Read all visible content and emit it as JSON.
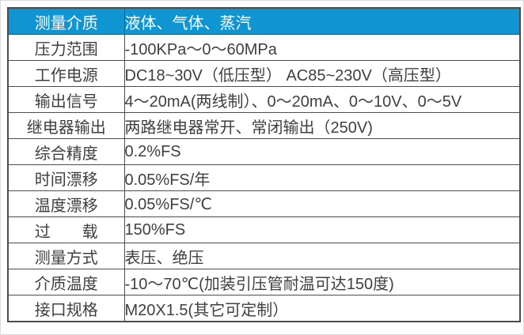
{
  "table": {
    "header": {
      "label": "测量介质",
      "value": "液体、气体、蒸汽"
    },
    "rows": [
      {
        "label": "压力范围",
        "value": "-100KPa～0～60MPa"
      },
      {
        "label": "工作电源",
        "value": "DC18~30V（低压型） AC85~230V（高压型）"
      },
      {
        "label": "输出信号",
        "value": "4～20mA(两线制）、0～20mA、0～10V、0～5V"
      },
      {
        "label": "继电器输出",
        "value": "两路继电器常开、常闭输出（250V)"
      },
      {
        "label": "综合精度",
        "value": "0.2%FS"
      },
      {
        "label": "时间漂移",
        "value": "0.05%FS/年"
      },
      {
        "label": "温度漂移",
        "value": "0.05%FS/℃"
      },
      {
        "label": "过　　载",
        "value": "150%FS"
      },
      {
        "label": "测量方式",
        "value": "表压、绝压"
      },
      {
        "label": "介质温度",
        "value": "-10～70℃(加装引压管耐温可达150度)"
      },
      {
        "label": "接口规格",
        "value": "M20X1.5(其它可定制）"
      }
    ],
    "colors": {
      "header_bg": "#1095d3",
      "header_text": "#ffffff",
      "border": "#4c4c4c",
      "text": "#3f3f3f"
    }
  }
}
